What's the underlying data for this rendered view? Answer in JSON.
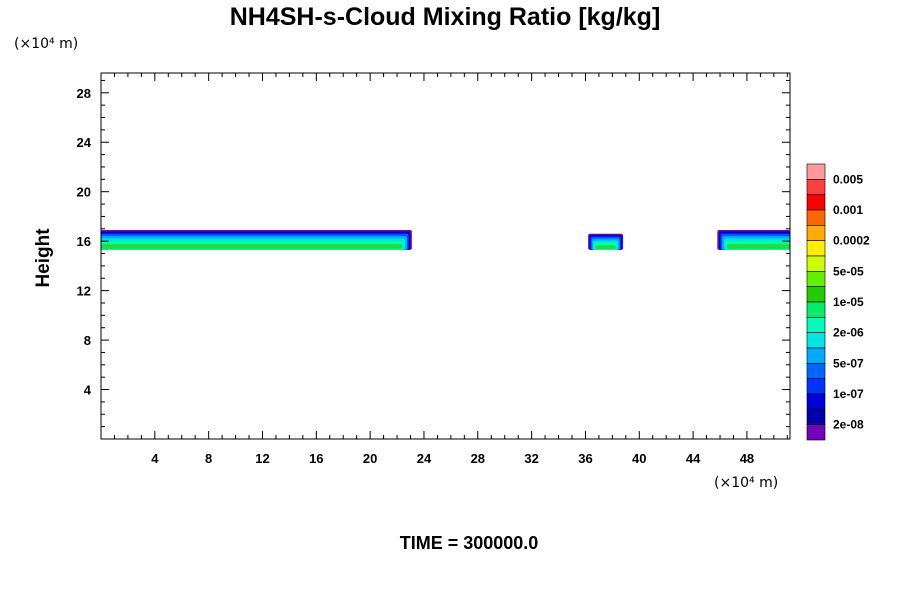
{
  "chart_data": {
    "type": "heatmap",
    "title": "NH4SH-s-Cloud Mixing Ratio [kg/kg]",
    "xlabel": "",
    "ylabel": "Height",
    "x_unit": "(×10⁴ m)",
    "y_unit": "(×10⁴ m)",
    "xlim": [
      0,
      51.2
    ],
    "ylim": [
      0,
      29.6
    ],
    "x_ticks": [
      4,
      8,
      12,
      16,
      20,
      24,
      28,
      32,
      36,
      40,
      44,
      48
    ],
    "y_ticks": [
      4,
      8,
      12,
      16,
      20,
      24,
      28
    ],
    "colorbar": {
      "labels": [
        "0.005",
        "0.001",
        "0.0002",
        "5e-05",
        "1e-05",
        "2e-06",
        "5e-07",
        "1e-07",
        "2e-08"
      ],
      "colors_top_to_bottom": [
        "#ff9999",
        "#ff4040",
        "#ff0000",
        "#ff6600",
        "#ffaa00",
        "#ffee00",
        "#ccff00",
        "#66ee00",
        "#22cc00",
        "#00ee66",
        "#00ffbb",
        "#00e5e5",
        "#00aaff",
        "#0066ff",
        "#0033ff",
        "#0000dd",
        "#0000aa",
        "#7700bb"
      ]
    },
    "cloud_regions": [
      {
        "x_start": 0,
        "x_end": 23.1,
        "z_bottom": 15.3,
        "z_top": 16.9
      },
      {
        "x_start": 36.2,
        "x_end": 38.8,
        "z_bottom": 15.3,
        "z_top": 16.6
      },
      {
        "x_start": 45.8,
        "x_end": 51.2,
        "z_bottom": 15.3,
        "z_top": 16.9
      }
    ],
    "time_label": "TIME = 300000.0"
  }
}
